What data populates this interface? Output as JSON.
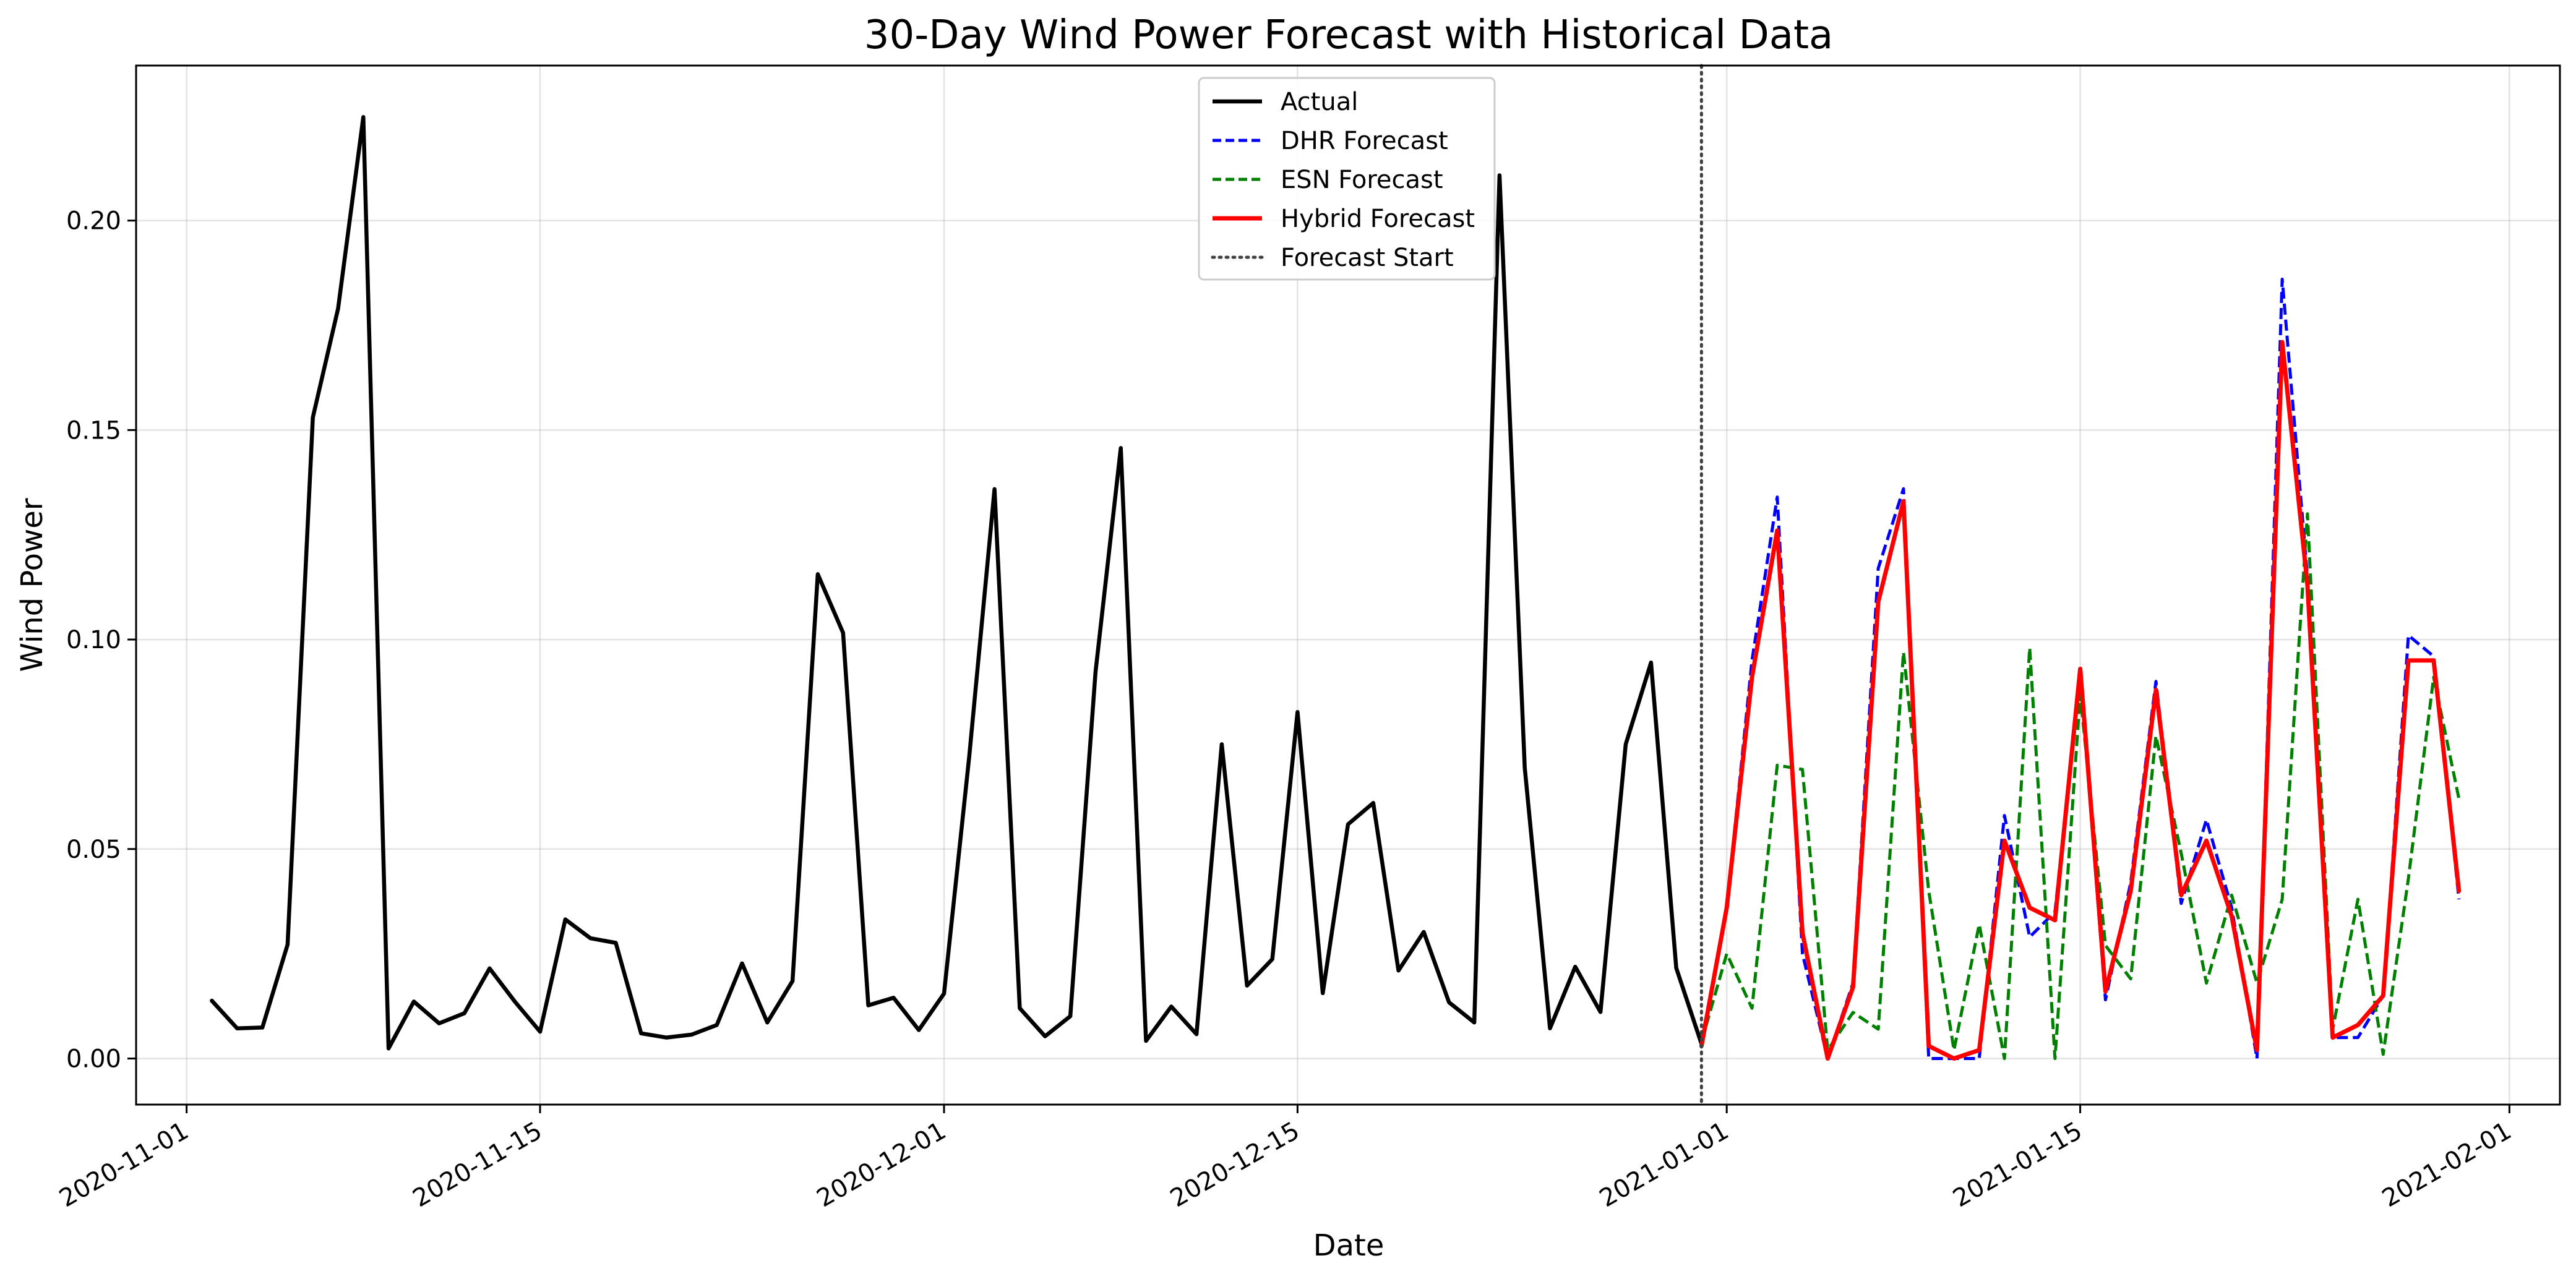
{
  "chart_data": {
    "type": "line",
    "title": "30-Day Wind Power Forecast with Historical Data",
    "xlabel": "Date",
    "ylabel": "Wind Power",
    "xlim": [
      "2020-10-30",
      "2021-02-03"
    ],
    "ylim": [
      -0.011,
      0.237
    ],
    "grid": true,
    "legend_position": "top-center",
    "x_ticks": [
      "2020-11-01",
      "2020-11-15",
      "2020-12-01",
      "2020-12-15",
      "2021-01-01",
      "2021-01-15",
      "2021-02-01"
    ],
    "y_ticks": [
      "0.00",
      "0.05",
      "0.10",
      "0.15",
      "0.20"
    ],
    "forecast_start": "2020-12-31",
    "colors": {
      "actual": "#000000",
      "dhr": "#0000ff",
      "esn": "#008000",
      "hybrid": "#ff0000",
      "forecast_start": "#404040"
    },
    "series": [
      {
        "name": "Actual",
        "style": "solid",
        "color": "#000000",
        "start": "2020-11-02",
        "values": [
          0.0138,
          0.0072,
          0.0074,
          0.0272,
          0.153,
          0.179,
          0.2247,
          0.0024,
          0.0136,
          0.0084,
          0.0108,
          0.0215,
          0.0136,
          0.0064,
          0.0332,
          0.0287,
          0.0276,
          0.006,
          0.005,
          0.0057,
          0.008,
          0.0227,
          0.0086,
          0.0185,
          0.1156,
          0.1016,
          0.0127,
          0.0145,
          0.0068,
          0.0155,
          0.0722,
          0.1359,
          0.012,
          0.0053,
          0.0101,
          0.0923,
          0.1457,
          0.0042,
          0.0124,
          0.0058,
          0.075,
          0.0174,
          0.0237,
          0.0827,
          0.0156,
          0.0559,
          0.061,
          0.021,
          0.0302,
          0.0134,
          0.0086,
          0.2108,
          0.0694,
          0.0072,
          0.0219,
          0.0111,
          0.075,
          0.0945,
          0.0216,
          0.0035
        ]
      },
      {
        "name": "DHR Forecast",
        "style": "dashed",
        "color": "#0000ff",
        "start": "2020-12-31",
        "values": [
          0.004,
          0.036,
          0.095,
          0.134,
          0.025,
          0.0,
          0.018,
          0.117,
          0.136,
          0.0,
          0.0,
          0.0,
          0.058,
          0.029,
          0.035,
          0.092,
          0.014,
          0.042,
          0.09,
          0.037,
          0.057,
          0.036,
          0.0,
          0.186,
          0.115,
          0.005,
          0.005,
          0.015,
          0.101,
          0.096,
          0.038
        ]
      },
      {
        "name": "ESN Forecast",
        "style": "dashed",
        "color": "#008000",
        "start": "2020-12-31",
        "values": [
          0.004,
          0.025,
          0.012,
          0.07,
          0.069,
          0.002,
          0.011,
          0.007,
          0.097,
          0.04,
          0.002,
          0.032,
          0.0,
          0.098,
          0.0,
          0.087,
          0.027,
          0.019,
          0.077,
          0.049,
          0.018,
          0.039,
          0.018,
          0.038,
          0.13,
          0.007,
          0.038,
          0.001,
          0.043,
          0.091,
          0.062
        ]
      },
      {
        "name": "Hybrid Forecast",
        "style": "solid",
        "color": "#ff0000",
        "start": "2020-12-31",
        "values": [
          0.003,
          0.036,
          0.091,
          0.126,
          0.03,
          0.0,
          0.017,
          0.109,
          0.133,
          0.003,
          0.0,
          0.002,
          0.052,
          0.036,
          0.033,
          0.093,
          0.016,
          0.04,
          0.088,
          0.039,
          0.052,
          0.034,
          0.002,
          0.171,
          0.113,
          0.005,
          0.008,
          0.015,
          0.095,
          0.095,
          0.04
        ]
      }
    ],
    "legend": [
      "Actual",
      "DHR Forecast",
      "ESN Forecast",
      "Hybrid Forecast",
      "Forecast Start"
    ]
  }
}
